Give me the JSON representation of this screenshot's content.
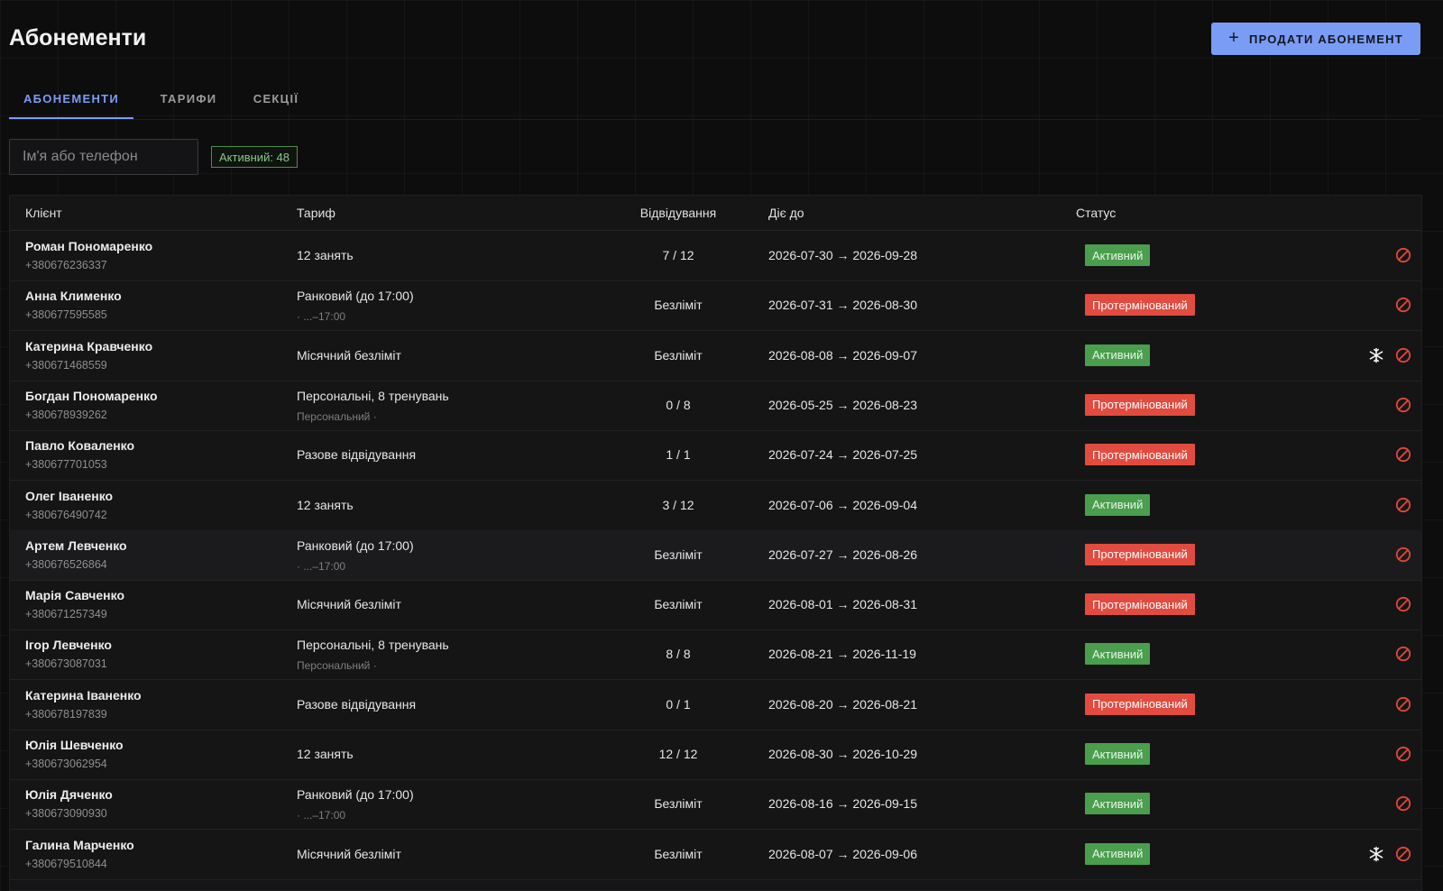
{
  "header": {
    "title": "Абонементи",
    "sell_button": "ПРОДАТИ АБОНЕМЕНТ",
    "sell_icon": "+"
  },
  "tabs": [
    {
      "label": "АБОНЕМЕНТИ",
      "active": true
    },
    {
      "label": "ТАРИФИ",
      "active": false
    },
    {
      "label": "СЕКЦІЇ",
      "active": false
    }
  ],
  "filters": {
    "search_placeholder": "Ім'я або телефон",
    "active_count": "Активний: 48"
  },
  "table": {
    "columns": [
      "Клієнт",
      "Тариф",
      "Відвідування",
      "Діє до",
      "Статус"
    ],
    "rows": [
      {
        "name": "Роман Пономаренко",
        "phone": "+380676236337",
        "tariff": "12 занять",
        "tariff_sub": "",
        "visits": "7 / 12",
        "dates": "2026-07-30 → 2026-09-28",
        "status": "Активний",
        "status_kind": "active",
        "freeze": false
      },
      {
        "name": "Анна Клименко",
        "phone": "+380677595585",
        "tariff": "Ранковий (до 17:00)",
        "tariff_sub": "· ...–17:00",
        "visits": "Безліміт",
        "dates": "2026-07-31 → 2026-08-30",
        "status": "Протермінований",
        "status_kind": "expired",
        "freeze": false
      },
      {
        "name": "Катерина Кравченко",
        "phone": "+380671468559",
        "tariff": "Місячний безліміт",
        "tariff_sub": "",
        "visits": "Безліміт",
        "dates": "2026-08-08 → 2026-09-07",
        "status": "Активний",
        "status_kind": "active",
        "freeze": true
      },
      {
        "name": "Богдан Пономаренко",
        "phone": "+380678939262",
        "tariff": "Персональні, 8 тренувань",
        "tariff_sub": "Персональний ·",
        "visits": "0 / 8",
        "dates": "2026-05-25 → 2026-08-23",
        "status": "Протермінований",
        "status_kind": "expired",
        "freeze": false
      },
      {
        "name": "Павло Коваленко",
        "phone": "+380677701053",
        "tariff": "Разове відвідування",
        "tariff_sub": "",
        "visits": "1 / 1",
        "dates": "2026-07-24 → 2026-07-25",
        "status": "Протермінований",
        "status_kind": "expired",
        "freeze": false
      },
      {
        "name": "Олег Іваненко",
        "phone": "+380676490742",
        "tariff": "12 занять",
        "tariff_sub": "",
        "visits": "3 / 12",
        "dates": "2026-07-06 → 2026-09-04",
        "status": "Активний",
        "status_kind": "active",
        "freeze": false
      },
      {
        "name": "Артем Левченко",
        "phone": "+380676526864",
        "tariff": "Ранковий (до 17:00)",
        "tariff_sub": "· ...–17:00",
        "visits": "Безліміт",
        "dates": "2026-07-27 → 2026-08-26",
        "status": "Протермінований",
        "status_kind": "expired",
        "freeze": false,
        "highlight": true
      },
      {
        "name": "Марія Савченко",
        "phone": "+380671257349",
        "tariff": "Місячний безліміт",
        "tariff_sub": "",
        "visits": "Безліміт",
        "dates": "2026-08-01 → 2026-08-31",
        "status": "Протермінований",
        "status_kind": "expired",
        "freeze": false
      },
      {
        "name": "Ігор Левченко",
        "phone": "+380673087031",
        "tariff": "Персональні, 8 тренувань",
        "tariff_sub": "Персональний ·",
        "visits": "8 / 8",
        "dates": "2026-08-21 → 2026-11-19",
        "status": "Активний",
        "status_kind": "active",
        "freeze": false
      },
      {
        "name": "Катерина Іваненко",
        "phone": "+380678197839",
        "tariff": "Разове відвідування",
        "tariff_sub": "",
        "visits": "0 / 1",
        "dates": "2026-08-20 → 2026-08-21",
        "status": "Протермінований",
        "status_kind": "expired",
        "freeze": false
      },
      {
        "name": "Юлія Шевченко",
        "phone": "+380673062954",
        "tariff": "12 занять",
        "tariff_sub": "",
        "visits": "12 / 12",
        "dates": "2026-08-30 → 2026-10-29",
        "status": "Активний",
        "status_kind": "active",
        "freeze": false
      },
      {
        "name": "Юлія Дяченко",
        "phone": "+380673090930",
        "tariff": "Ранковий (до 17:00)",
        "tariff_sub": "· ...–17:00",
        "visits": "Безліміт",
        "dates": "2026-08-16 → 2026-09-15",
        "status": "Активний",
        "status_kind": "active",
        "freeze": false
      },
      {
        "name": "Галина Марченко",
        "phone": "+380679510844",
        "tariff": "Місячний безліміт",
        "tariff_sub": "",
        "visits": "Безліміт",
        "dates": "2026-08-07 → 2026-09-06",
        "status": "Активний",
        "status_kind": "active",
        "freeze": true
      }
    ]
  },
  "colors": {
    "accent": "#7b9cf5",
    "active": "#4a9e4d",
    "expired": "#e24b3f",
    "cancel_icon": "#e0483c"
  },
  "icons": {
    "cancel": "cancel-icon",
    "freeze": "snowflake-icon"
  }
}
